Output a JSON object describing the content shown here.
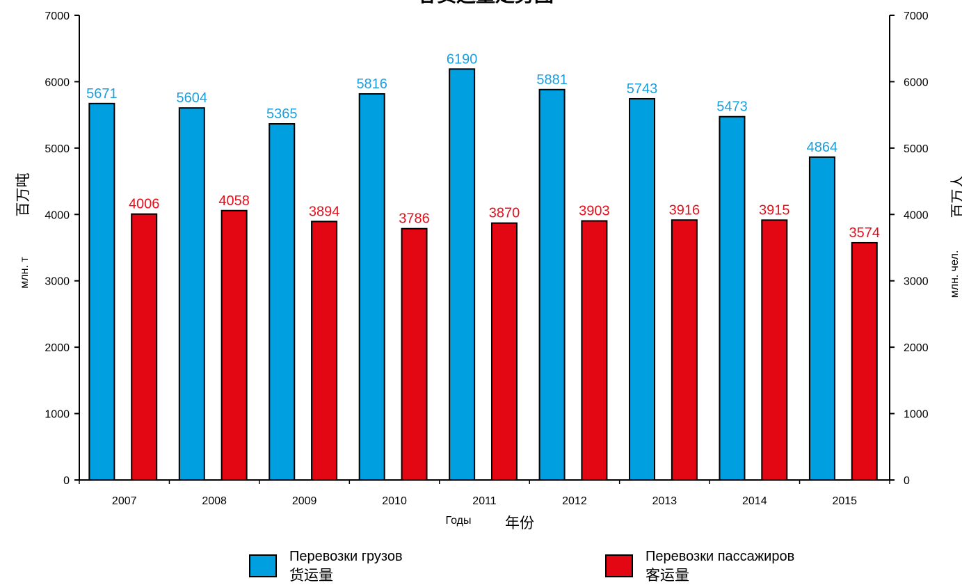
{
  "chart_data": {
    "type": "bar",
    "title": "客货运量走势图",
    "categories": [
      "2007",
      "2008",
      "2009",
      "2010",
      "2011",
      "2012",
      "2013",
      "2014",
      "2015"
    ],
    "series": [
      {
        "name": "Перевозки грузов",
        "name_cn": "货运量",
        "color": "#009fe0",
        "label_color": "#1a9fdc",
        "values": [
          5671,
          5604,
          5365,
          5816,
          6190,
          5881,
          5743,
          5473,
          4864
        ]
      },
      {
        "name": "Перевозки пассажиров",
        "name_cn": "客运量",
        "color": "#e30613",
        "label_color": "#e3101c",
        "values": [
          4006,
          4058,
          3894,
          3786,
          3870,
          3903,
          3916,
          3915,
          3574
        ]
      }
    ],
    "xlabel": "Годы",
    "xlabel_cn": "年份",
    "ylabel_left": "млн. т",
    "ylabel_left_cn": "百万吨",
    "ylabel_right": "млн. чел.",
    "ylabel_right_cn": "百万人",
    "ylim": [
      0,
      7000
    ],
    "yticks": [
      0,
      1000,
      2000,
      3000,
      4000,
      5000,
      6000,
      7000
    ],
    "grid": false,
    "legend_position": "bottom"
  }
}
